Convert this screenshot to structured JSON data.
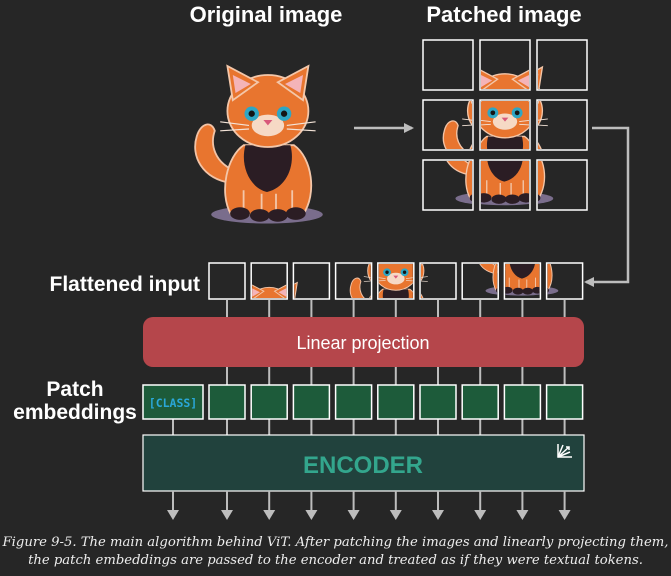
{
  "titles": {
    "original": "Original image",
    "patched": "Patched image"
  },
  "labels": {
    "flattened": "Flattened input",
    "patch_line1": "Patch",
    "patch_line2": "embeddings",
    "linear_projection": "Linear projection",
    "class_token": "[CLASS]",
    "encoder": "ENCODER"
  },
  "caption": {
    "line1": "Figure 9-5. The main algorithm behind ViT. After patching the images and linearly projecting them,",
    "line2": "the patch embeddings are passed to the encoder and treated as if they were textual tokens."
  },
  "colors": {
    "background": "#262626",
    "projection_fill": "#b5464b",
    "embedding_fill": "#1d5b3a",
    "encoder_fill": "#21423d",
    "encoder_text": "#33a68d",
    "class_text": "#2aa7d8",
    "cat_orange": "#e8752f"
  },
  "patches": {
    "grid_size": 3,
    "flattened_count": 9,
    "empty_patch_index": 0
  },
  "icons": {
    "encoder_corner": "expand-arrows-icon",
    "arrows": "arrow-icon"
  }
}
